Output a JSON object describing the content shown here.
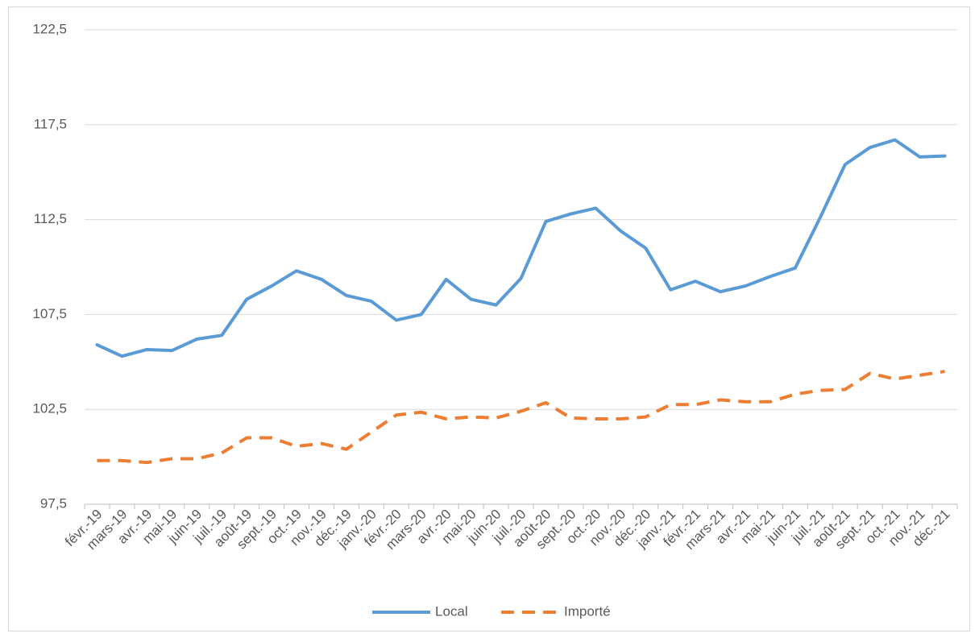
{
  "chart_data": {
    "type": "line",
    "categories": [
      "févr.-19",
      "mars-19",
      "avr.-19",
      "mai-19",
      "juin-19",
      "juil.-19",
      "août-19",
      "sept.-19",
      "oct.-19",
      "nov.-19",
      "déc.-19",
      "janv.-20",
      "févr.-20",
      "mars-20",
      "avr.-20",
      "mai-20",
      "juin-20",
      "juil.-20",
      "août-20",
      "sept.-20",
      "oct.-20",
      "nov.-20",
      "déc.-20",
      "janv.-21",
      "févr.-21",
      "mars-21",
      "avr.-21",
      "mai-21",
      "juin-21",
      "juil.-21",
      "août-21",
      "sept.-21",
      "oct.-21",
      "nov.-21",
      "déc.-21"
    ],
    "series": [
      {
        "name": "Local",
        "color": "#5b9bd5",
        "dash": false,
        "values": [
          105.9,
          105.3,
          105.65,
          105.6,
          106.2,
          106.4,
          108.3,
          109.0,
          109.8,
          109.35,
          108.5,
          108.2,
          107.2,
          107.5,
          109.35,
          108.3,
          108.0,
          109.4,
          112.4,
          112.8,
          113.1,
          111.9,
          111.0,
          108.8,
          109.25,
          108.7,
          109.0,
          109.5,
          109.95,
          112.6,
          115.4,
          116.3,
          116.7,
          115.8,
          115.85
        ]
      },
      {
        "name": "Importé",
        "color": "#ed7d31",
        "dash": true,
        "values": [
          99.8,
          99.8,
          99.7,
          99.9,
          99.9,
          100.2,
          101.0,
          101.0,
          100.55,
          100.7,
          100.4,
          101.3,
          102.2,
          102.35,
          102.0,
          102.1,
          102.05,
          102.4,
          102.85,
          102.05,
          102.0,
          102.0,
          102.1,
          102.75,
          102.75,
          103.0,
          102.9,
          102.9,
          103.3,
          103.5,
          103.55,
          104.4,
          104.1,
          104.3,
          104.5
        ]
      }
    ],
    "ylim": [
      97.5,
      122.5
    ],
    "yticks": [
      {
        "value": 97.5,
        "label": "97,5"
      },
      {
        "value": 102.5,
        "label": "102,5"
      },
      {
        "value": 107.5,
        "label": "107,5"
      },
      {
        "value": 112.5,
        "label": "112,5"
      },
      {
        "value": 117.5,
        "label": "117,5"
      },
      {
        "value": 122.5,
        "label": "122,5"
      }
    ],
    "grid": true,
    "legend": "bottom"
  }
}
